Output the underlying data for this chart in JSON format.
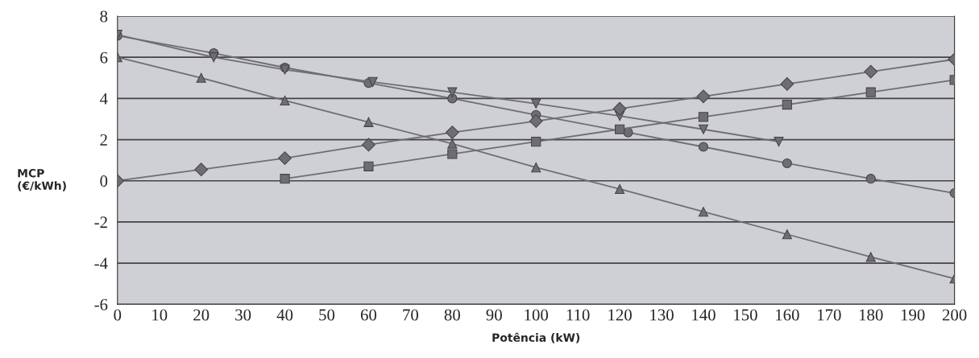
{
  "chart_data": {
    "type": "line",
    "xlabel": "Potência (kW)",
    "ylabel": "MCP\n(€/kWh)",
    "xlim": [
      0,
      200
    ],
    "xticks": [
      0,
      10,
      20,
      30,
      40,
      50,
      60,
      70,
      80,
      90,
      100,
      110,
      120,
      130,
      140,
      150,
      160,
      170,
      180,
      190,
      200
    ],
    "ylim": [
      -6,
      8
    ],
    "yticks": [
      -6,
      -4,
      -2,
      0,
      2,
      4,
      6,
      8
    ],
    "grid": "y",
    "legend": false,
    "series": [
      {
        "color": "#6e6e72",
        "marker": "diamond",
        "x": [
          0,
          20,
          40,
          60,
          80,
          100,
          120,
          140,
          160,
          180,
          200
        ],
        "values": [
          0,
          0.55,
          1.1,
          1.75,
          2.35,
          2.9,
          3.5,
          4.1,
          4.7,
          5.3,
          5.9
        ]
      },
      {
        "color": "#6e6e72",
        "marker": "square",
        "x": [
          40,
          60,
          80,
          100,
          120,
          140,
          160,
          180,
          200
        ],
        "values": [
          0.1,
          0.7,
          1.3,
          1.9,
          2.5,
          3.1,
          3.7,
          4.3,
          4.9
        ]
      },
      {
        "color": "#6e6e72",
        "marker": "triangle",
        "x": [
          0,
          20,
          40,
          60,
          80,
          100,
          120,
          140,
          160,
          180,
          200
        ],
        "values": [
          6,
          5,
          3.9,
          2.85,
          1.8,
          0.65,
          -0.4,
          -1.5,
          -2.6,
          -3.7,
          -4.75
        ]
      },
      {
        "color": "#6e6e72",
        "marker": "triangle_down",
        "x": [
          0,
          23,
          40,
          61,
          80,
          100,
          120,
          140,
          158
        ],
        "values": [
          7.1,
          6.0,
          5.4,
          4.8,
          4.3,
          3.75,
          3.15,
          2.5,
          1.9
        ]
      },
      {
        "color": "#6e6e72",
        "marker": "circle",
        "x": [
          0,
          23,
          40,
          60,
          80,
          100,
          122,
          140,
          160,
          180,
          200
        ],
        "values": [
          7.05,
          6.2,
          5.5,
          4.75,
          4.0,
          3.2,
          2.35,
          1.65,
          0.85,
          0.1,
          -0.6
        ]
      }
    ]
  }
}
